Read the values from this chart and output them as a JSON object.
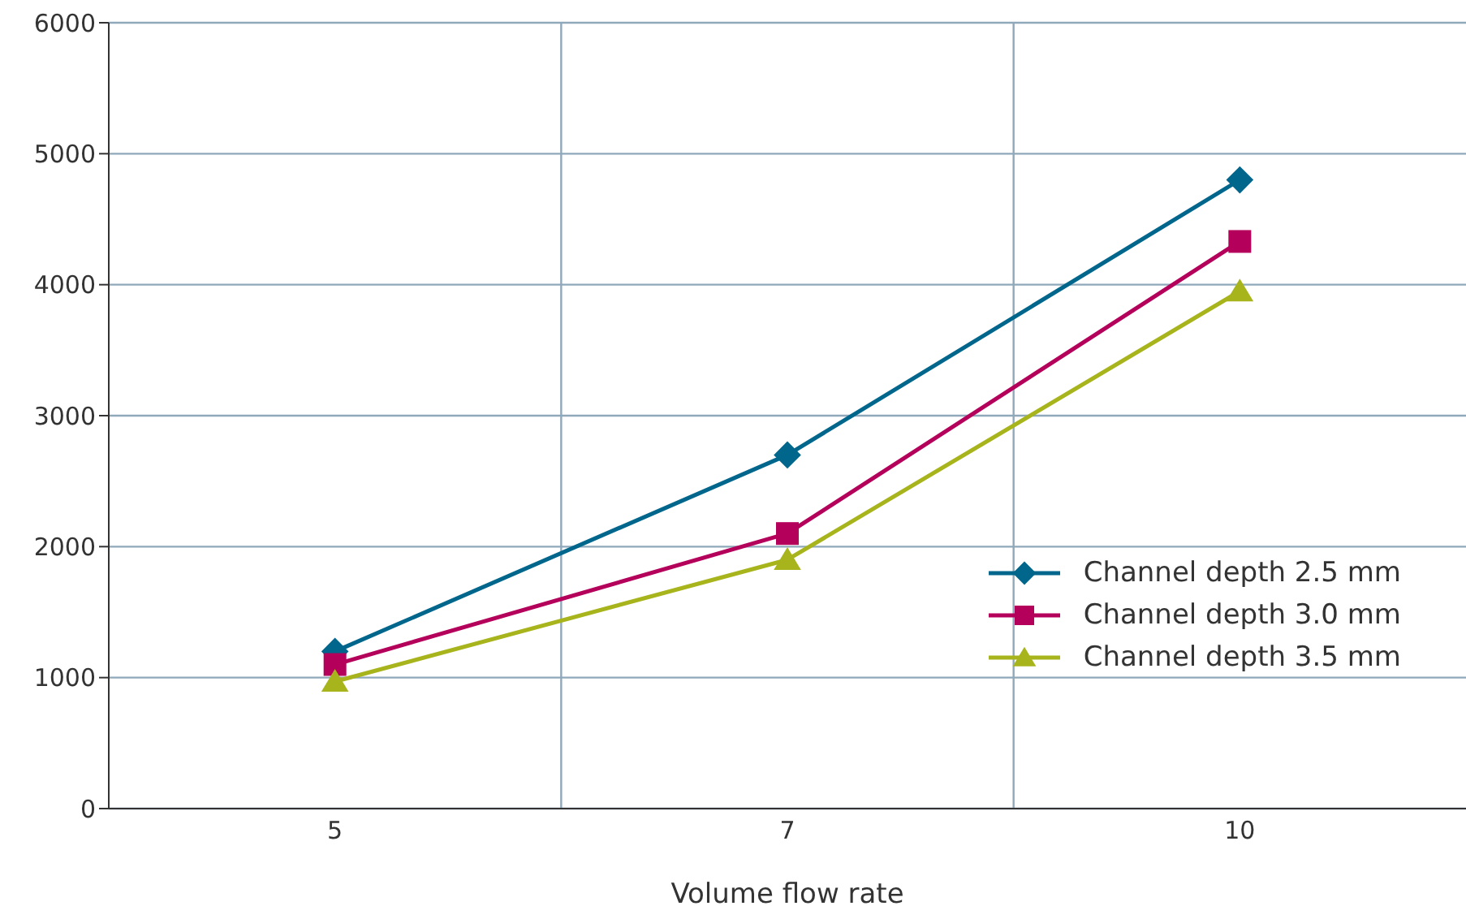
{
  "chart_data": {
    "type": "line",
    "xlabel": "Volume flow rate",
    "categories": [
      "5",
      "7",
      "10"
    ],
    "series": [
      {
        "name": "Channel depth 2.5 mm",
        "color": "#00668c",
        "marker": "diamond",
        "values": [
          1200,
          2700,
          4800
        ]
      },
      {
        "name": "Channel depth 3.0 mm",
        "color": "#b5005b",
        "marker": "square",
        "values": [
          1100,
          2100,
          4330
        ]
      },
      {
        "name": "Channel depth 3.5 mm",
        "color": "#a8b41c",
        "marker": "triangle",
        "values": [
          970,
          1900,
          3950
        ]
      }
    ],
    "ylim": [
      0,
      6000
    ],
    "yticks": [
      0,
      1000,
      2000,
      3000,
      4000,
      5000,
      6000
    ],
    "grid": true,
    "legend": "right"
  }
}
